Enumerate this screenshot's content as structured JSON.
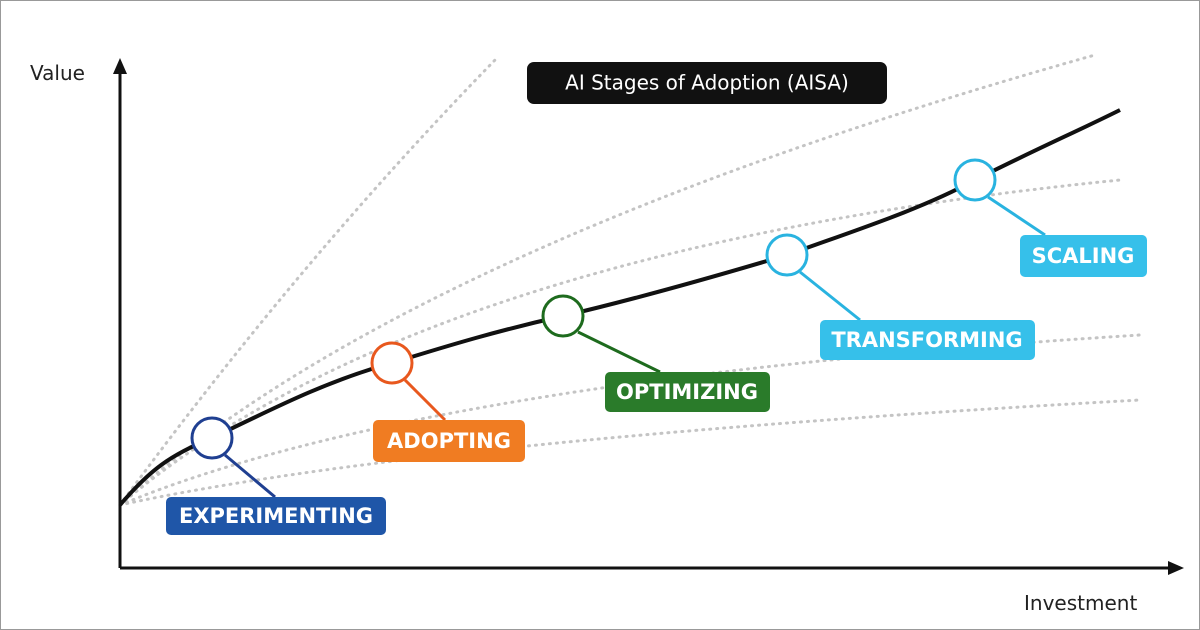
{
  "title": "AI Stages of Adoption (AISA)",
  "axes": {
    "y_label": "Value",
    "x_label": "Investment"
  },
  "stages": [
    {
      "label": "EXPERIMENTING"
    },
    {
      "label": "ADOPTING"
    },
    {
      "label": "OPTIMIZING"
    },
    {
      "label": "TRANSFORMING"
    },
    {
      "label": "SCALING"
    }
  ]
}
